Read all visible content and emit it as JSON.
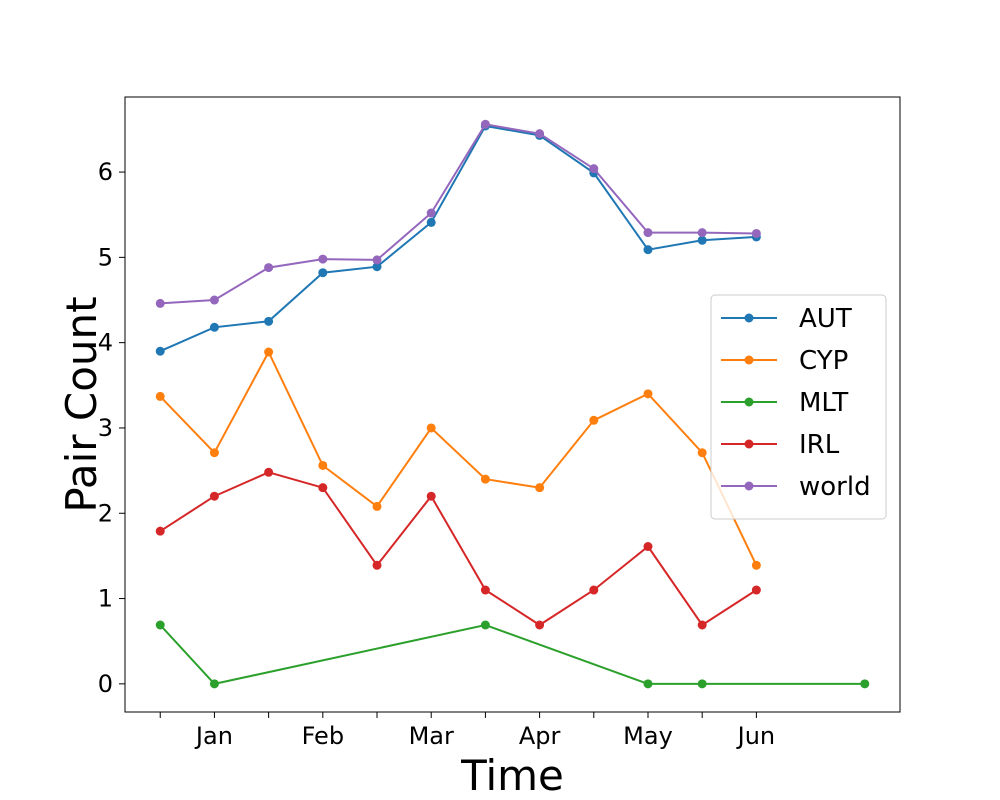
{
  "chart_data": {
    "type": "line",
    "title": "",
    "xlabel": "Time",
    "ylabel": "Pair Count",
    "x_positions": [
      0,
      1,
      2,
      3,
      4,
      5,
      6,
      7,
      8,
      9,
      10,
      11,
      12,
      13
    ],
    "x_tick_positions": [
      0,
      1,
      2,
      3,
      4,
      5,
      6,
      7,
      8,
      9,
      10,
      11
    ],
    "x_tick_labels": [
      "",
      "Jan",
      "",
      "Feb",
      "",
      "Mar",
      "",
      "Apr",
      "",
      "May",
      "",
      "Jun"
    ],
    "xlim": [
      -0.65,
      13.65
    ],
    "ylim": [
      -0.33,
      6.88
    ],
    "y_ticks": [
      0,
      1,
      2,
      3,
      4,
      5,
      6
    ],
    "y_tick_labels": [
      "0",
      "1",
      "2",
      "3",
      "4",
      "5",
      "6"
    ],
    "grid": false,
    "legend_position": "center-right",
    "series": [
      {
        "name": "AUT",
        "color": "#1f77b4",
        "points": [
          [
            0,
            3.9
          ],
          [
            1,
            4.18
          ],
          [
            2,
            4.25
          ],
          [
            3,
            4.82
          ],
          [
            4,
            4.89
          ],
          [
            5,
            5.41
          ],
          [
            6,
            6.54
          ],
          [
            7,
            6.43
          ],
          [
            8,
            5.99
          ],
          [
            9,
            5.09
          ],
          [
            10,
            5.2
          ],
          [
            11,
            5.24
          ]
        ]
      },
      {
        "name": "CYP",
        "color": "#ff7f0e",
        "points": [
          [
            0,
            3.37
          ],
          [
            1,
            2.71
          ],
          [
            2,
            3.89
          ],
          [
            3,
            2.56
          ],
          [
            4,
            2.08
          ],
          [
            5,
            3.0
          ],
          [
            6,
            2.4
          ],
          [
            7,
            2.3
          ],
          [
            8,
            3.09
          ],
          [
            9,
            3.4
          ],
          [
            10,
            2.71
          ],
          [
            11,
            1.39
          ]
        ]
      },
      {
        "name": "MLT",
        "color": "#2ca02c",
        "points": [
          [
            0,
            0.69
          ],
          [
            1,
            0.0
          ],
          [
            6,
            0.69
          ],
          [
            9,
            0.0
          ],
          [
            10,
            0.0
          ],
          [
            13,
            0.0
          ]
        ]
      },
      {
        "name": "IRL",
        "color": "#d62728",
        "points": [
          [
            0,
            1.79
          ],
          [
            1,
            2.2
          ],
          [
            2,
            2.48
          ],
          [
            3,
            2.3
          ],
          [
            4,
            1.39
          ],
          [
            5,
            2.2
          ],
          [
            6,
            1.1
          ],
          [
            7,
            0.69
          ],
          [
            8,
            1.1
          ],
          [
            9,
            1.61
          ],
          [
            10,
            0.69
          ],
          [
            11,
            1.1
          ]
        ]
      },
      {
        "name": "world",
        "color": "#9467bd",
        "points": [
          [
            0,
            4.46
          ],
          [
            1,
            4.5
          ],
          [
            2,
            4.88
          ],
          [
            3,
            4.98
          ],
          [
            4,
            4.97
          ],
          [
            5,
            5.52
          ],
          [
            6,
            6.56
          ],
          [
            7,
            6.45
          ],
          [
            8,
            6.04
          ],
          [
            9,
            5.29
          ],
          [
            10,
            5.29
          ],
          [
            11,
            5.28
          ]
        ]
      }
    ]
  }
}
